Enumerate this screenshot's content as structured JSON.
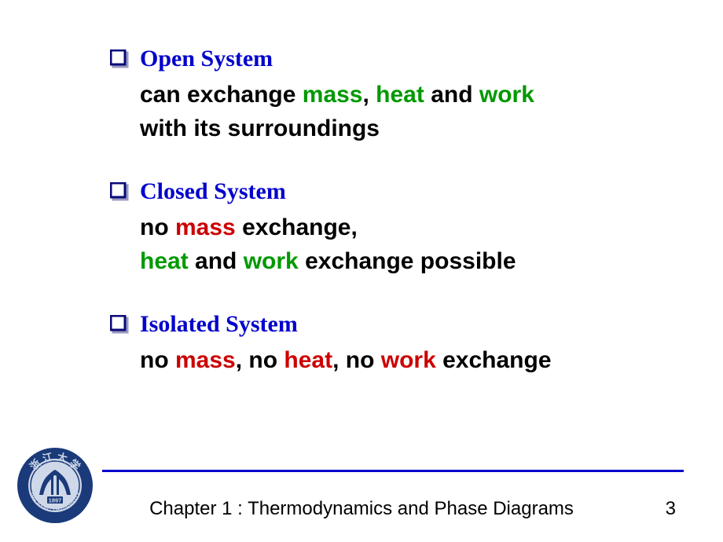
{
  "colors": {
    "heading": "#0000cc",
    "body": "#000000",
    "green": "#009900",
    "red": "#cc0000",
    "bullet_stroke": "#0a0a7a",
    "bullet_shadow": "#9a9ac0",
    "line": "#0000cc",
    "logo_blue": "#1a3a7a",
    "logo_inner": "#cfd8e8"
  },
  "sections": [
    {
      "heading": "Open System",
      "lines": [
        [
          {
            "text": "can exchange ",
            "color": "black"
          },
          {
            "text": "mass",
            "color": "green"
          },
          {
            "text": ", ",
            "color": "black"
          },
          {
            "text": "heat",
            "color": "green"
          },
          {
            "text": " and ",
            "color": "black"
          },
          {
            "text": "work",
            "color": "green"
          }
        ],
        [
          {
            "text": "with its surroundings",
            "color": "black"
          }
        ]
      ]
    },
    {
      "heading": "Closed System",
      "lines": [
        [
          {
            "text": "no ",
            "color": "black"
          },
          {
            "text": "mass",
            "color": "red"
          },
          {
            "text": " exchange,",
            "color": "black"
          }
        ],
        [
          {
            "text": "heat",
            "color": "green"
          },
          {
            "text": " and ",
            "color": "black"
          },
          {
            "text": "work",
            "color": "green"
          },
          {
            "text": " exchange possible",
            "color": "black"
          }
        ]
      ]
    },
    {
      "heading": "Isolated System",
      "lines": [
        [
          {
            "text": "no ",
            "color": "black"
          },
          {
            "text": "mass",
            "color": "red"
          },
          {
            "text": ", no ",
            "color": "black"
          },
          {
            "text": "heat",
            "color": "red"
          },
          {
            "text": ", no ",
            "color": "black"
          },
          {
            "text": "work",
            "color": "red"
          },
          {
            "text": " exchange",
            "color": "black"
          }
        ]
      ]
    }
  ],
  "footer": {
    "chapter": "Chapter 1 :  Thermodynamics and Phase Diagrams",
    "page": "3",
    "logo_year": "1897",
    "logo_outer_text": "ZHEJIANG UNIVERSITY"
  }
}
